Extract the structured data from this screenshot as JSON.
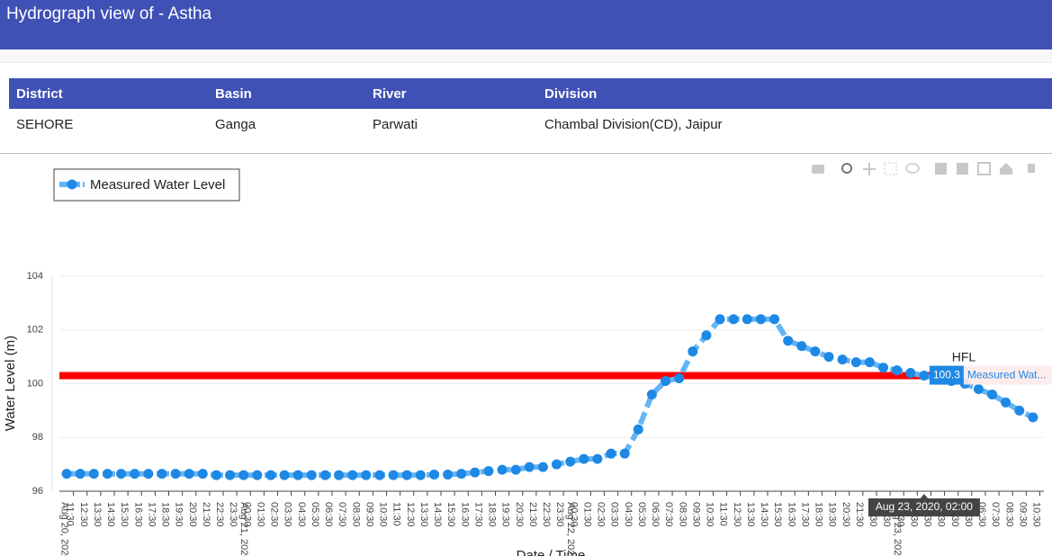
{
  "header": {
    "title": "Hydrograph view of - Astha"
  },
  "table": {
    "columns": [
      "District",
      "Basin",
      "River",
      "Division"
    ],
    "rows": [
      [
        "SEHORE",
        "Ganga",
        "Parwati",
        "Chambal Division(CD), Jaipur"
      ]
    ]
  },
  "chart_data": {
    "type": "line",
    "xlabel": "Date / Time",
    "ylabel": "Water Level (m)",
    "x": [
      "2020-08-20T11:00",
      "2020-08-20T12:00",
      "2020-08-20T13:00",
      "2020-08-20T14:00",
      "2020-08-20T15:00",
      "2020-08-20T16:00",
      "2020-08-20T17:00",
      "2020-08-20T18:00",
      "2020-08-20T19:00",
      "2020-08-20T20:00",
      "2020-08-20T21:00",
      "2020-08-20T22:00",
      "2020-08-20T23:00",
      "2020-08-21T00:00",
      "2020-08-21T01:00",
      "2020-08-21T02:00",
      "2020-08-21T03:00",
      "2020-08-21T04:00",
      "2020-08-21T05:00",
      "2020-08-21T06:00",
      "2020-08-21T07:00",
      "2020-08-21T08:00",
      "2020-08-21T09:00",
      "2020-08-21T10:00",
      "2020-08-21T11:00",
      "2020-08-21T12:00",
      "2020-08-21T13:00",
      "2020-08-21T14:00",
      "2020-08-21T15:00",
      "2020-08-21T16:00",
      "2020-08-21T17:00",
      "2020-08-21T18:00",
      "2020-08-21T19:00",
      "2020-08-21T20:00",
      "2020-08-21T21:00",
      "2020-08-21T22:00",
      "2020-08-21T23:00",
      "2020-08-22T00:00",
      "2020-08-22T01:00",
      "2020-08-22T02:00",
      "2020-08-22T03:00",
      "2020-08-22T04:00",
      "2020-08-22T05:00",
      "2020-08-22T06:00",
      "2020-08-22T07:00",
      "2020-08-22T08:00",
      "2020-08-22T09:00",
      "2020-08-22T10:00",
      "2020-08-22T11:00",
      "2020-08-22T12:00",
      "2020-08-22T13:00",
      "2020-08-22T14:00",
      "2020-08-22T15:00",
      "2020-08-22T16:00",
      "2020-08-22T17:00",
      "2020-08-22T18:00",
      "2020-08-22T19:00",
      "2020-08-22T20:00",
      "2020-08-22T21:00",
      "2020-08-22T22:00",
      "2020-08-22T23:00",
      "2020-08-23T00:00",
      "2020-08-23T01:00",
      "2020-08-23T02:00",
      "2020-08-23T03:00",
      "2020-08-23T04:00",
      "2020-08-23T05:00",
      "2020-08-23T06:00",
      "2020-08-23T07:00",
      "2020-08-23T08:00",
      "2020-08-23T09:00",
      "2020-08-23T10:00"
    ],
    "series": [
      {
        "name": "Measured Water Level",
        "color": "#1e88e5",
        "line_color": "#64b5f6",
        "values": [
          96.65,
          96.65,
          96.65,
          96.65,
          96.65,
          96.65,
          96.65,
          96.65,
          96.65,
          96.65,
          96.65,
          96.6,
          96.6,
          96.6,
          96.6,
          96.6,
          96.6,
          96.6,
          96.6,
          96.6,
          96.6,
          96.6,
          96.6,
          96.6,
          96.6,
          96.6,
          96.6,
          96.62,
          96.62,
          96.65,
          96.7,
          96.75,
          96.8,
          96.8,
          96.9,
          96.9,
          97.0,
          97.1,
          97.2,
          97.2,
          97.4,
          97.4,
          98.3,
          99.6,
          100.1,
          100.2,
          101.2,
          101.8,
          102.4,
          102.4,
          102.4,
          102.4,
          102.4,
          101.6,
          101.4,
          101.2,
          101.0,
          100.9,
          100.8,
          100.8,
          100.6,
          100.5,
          100.4,
          100.3,
          100.2,
          100.1,
          100.0,
          99.8,
          99.6,
          99.3,
          99.0,
          98.75
        ]
      }
    ],
    "hfl": {
      "label": "HFL",
      "value": 100.3,
      "color": "#ff0000"
    },
    "hover": {
      "x_label": "Aug 23, 2020, 02:00",
      "series_label": "Measured Wat...",
      "index": 63
    },
    "xlim": [
      "2020-08-20T10:28",
      "2020-08-23T10:48"
    ],
    "ylim": [
      96,
      104
    ],
    "yticks": [
      96,
      98,
      100,
      102,
      104
    ],
    "grid": true,
    "xticks": [
      {
        "value": "2020-08-20T11:30",
        "label": "11:30"
      },
      {
        "value": "2020-08-20T12:30",
        "label": "12:30"
      },
      {
        "value": "2020-08-20T13:30",
        "label": "13:30"
      },
      {
        "value": "2020-08-20T14:30",
        "label": "14:30"
      },
      {
        "value": "2020-08-20T15:30",
        "label": "15:30"
      },
      {
        "value": "2020-08-20T16:30",
        "label": "16:30"
      },
      {
        "value": "2020-08-20T17:30",
        "label": "17:30"
      },
      {
        "value": "2020-08-20T18:30",
        "label": "18:30"
      },
      {
        "value": "2020-08-20T19:30",
        "label": "19:30"
      },
      {
        "value": "2020-08-20T20:30",
        "label": "20:30"
      },
      {
        "value": "2020-08-20T21:30",
        "label": "21:30"
      },
      {
        "value": "2020-08-20T22:30",
        "label": "22:30"
      },
      {
        "value": "2020-08-20T23:30",
        "label": "23:30"
      },
      {
        "value": "2020-08-21T00:30",
        "label": "00:30"
      },
      {
        "value": "2020-08-21T01:30",
        "label": "01:30"
      },
      {
        "value": "2020-08-21T02:30",
        "label": "02:30"
      },
      {
        "value": "2020-08-21T03:30",
        "label": "03:30"
      },
      {
        "value": "2020-08-21T04:30",
        "label": "04:30"
      },
      {
        "value": "2020-08-21T05:30",
        "label": "05:30"
      },
      {
        "value": "2020-08-21T06:30",
        "label": "06:30"
      },
      {
        "value": "2020-08-21T07:30",
        "label": "07:30"
      },
      {
        "value": "2020-08-21T08:30",
        "label": "08:30"
      },
      {
        "value": "2020-08-21T09:30",
        "label": "09:30"
      },
      {
        "value": "2020-08-21T10:30",
        "label": "10:30"
      },
      {
        "value": "2020-08-21T11:30",
        "label": "11:30"
      },
      {
        "value": "2020-08-21T12:30",
        "label": "12:30"
      },
      {
        "value": "2020-08-21T13:30",
        "label": "13:30"
      },
      {
        "value": "2020-08-21T14:30",
        "label": "14:30"
      },
      {
        "value": "2020-08-21T15:30",
        "label": "15:30"
      },
      {
        "value": "2020-08-21T16:30",
        "label": "16:30"
      },
      {
        "value": "2020-08-21T17:30",
        "label": "17:30"
      },
      {
        "value": "2020-08-21T18:30",
        "label": "18:30"
      },
      {
        "value": "2020-08-21T19:30",
        "label": "19:30"
      },
      {
        "value": "2020-08-21T20:30",
        "label": "20:30"
      },
      {
        "value": "2020-08-21T21:30",
        "label": "21:30"
      },
      {
        "value": "2020-08-21T22:30",
        "label": "22:30"
      },
      {
        "value": "2020-08-21T23:30",
        "label": "23:30"
      },
      {
        "value": "2020-08-22T00:30",
        "label": "00:30"
      },
      {
        "value": "2020-08-22T01:30",
        "label": "01:30"
      },
      {
        "value": "2020-08-22T02:30",
        "label": "02:30"
      },
      {
        "value": "2020-08-22T03:30",
        "label": "03:30"
      },
      {
        "value": "2020-08-22T04:30",
        "label": "04:30"
      },
      {
        "value": "2020-08-22T05:30",
        "label": "05:30"
      },
      {
        "value": "2020-08-22T06:30",
        "label": "06:30"
      },
      {
        "value": "2020-08-22T07:30",
        "label": "07:30"
      },
      {
        "value": "2020-08-22T08:30",
        "label": "08:30"
      },
      {
        "value": "2020-08-22T09:30",
        "label": "09:30"
      },
      {
        "value": "2020-08-22T10:30",
        "label": "10:30"
      },
      {
        "value": "2020-08-22T11:30",
        "label": "11:30"
      },
      {
        "value": "2020-08-22T12:30",
        "label": "12:30"
      },
      {
        "value": "2020-08-22T13:30",
        "label": "13:30"
      },
      {
        "value": "2020-08-22T14:30",
        "label": "14:30"
      },
      {
        "value": "2020-08-22T15:30",
        "label": "15:30"
      },
      {
        "value": "2020-08-22T16:30",
        "label": "16:30"
      },
      {
        "value": "2020-08-22T17:30",
        "label": "17:30"
      },
      {
        "value": "2020-08-22T18:30",
        "label": "18:30"
      },
      {
        "value": "2020-08-22T19:30",
        "label": "19:30"
      },
      {
        "value": "2020-08-22T20:30",
        "label": "20:30"
      },
      {
        "value": "2020-08-22T21:30",
        "label": "21:30"
      },
      {
        "value": "2020-08-22T22:30",
        "label": "22:30"
      },
      {
        "value": "2020-08-22T23:30",
        "label": "23:30"
      },
      {
        "value": "2020-08-23T00:30",
        "label": "00:30"
      },
      {
        "value": "2020-08-23T01:30",
        "label": "01:30"
      },
      {
        "value": "2020-08-23T02:30",
        "label": "02:30"
      },
      {
        "value": "2020-08-23T03:30",
        "label": "03:30"
      },
      {
        "value": "2020-08-23T04:30",
        "label": "04:30"
      },
      {
        "value": "2020-08-23T05:30",
        "label": "05:30"
      },
      {
        "value": "2020-08-23T06:30",
        "label": "06:30"
      },
      {
        "value": "2020-08-23T07:30",
        "label": "07:30"
      },
      {
        "value": "2020-08-23T08:30",
        "label": "08:30"
      },
      {
        "value": "2020-08-23T09:30",
        "label": "09:30"
      },
      {
        "value": "2020-08-23T10:30",
        "label": "10:30"
      }
    ],
    "date_ticks": [
      {
        "value": "2020-08-20T10:50",
        "label": "Aug 20, 2020"
      },
      {
        "value": "2020-08-21T00:00",
        "label": "Aug 21, 2020"
      },
      {
        "value": "2020-08-22T00:00",
        "label": "Aug 22, 2020"
      },
      {
        "value": "2020-08-23T00:00",
        "label": "Aug 23, 2020"
      }
    ]
  }
}
